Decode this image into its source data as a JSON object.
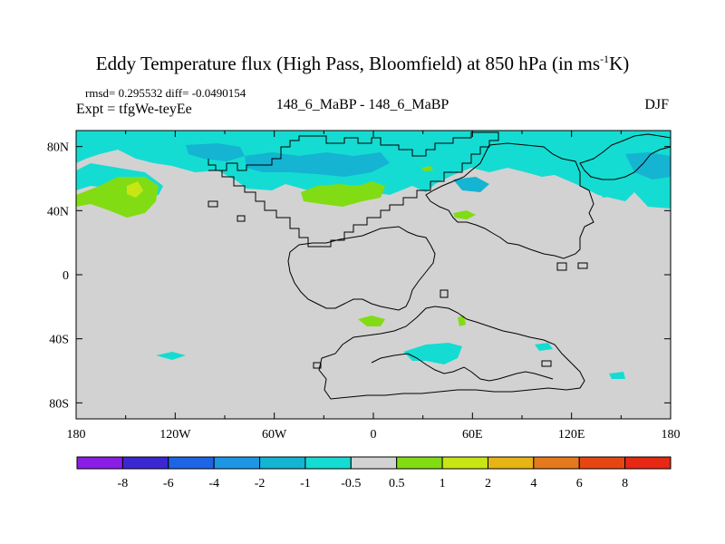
{
  "title": {
    "main": "Eddy Temperature flux (High Pass, Bloomfield) at 850 hPa (in ms",
    "sup": "-1",
    "tail": "K)"
  },
  "stats": "rmsd= 0.295532 diff= -0.0490154",
  "expt": "Expt = tfgWe-teyEe",
  "comparison": "148_6_MaBP - 148_6_MaBP",
  "season": "DJF",
  "lat_ticks": [
    "80N",
    "40N",
    "0",
    "40S",
    "80S"
  ],
  "lon_ticks": [
    "180",
    "120W",
    "60W",
    "0",
    "60E",
    "120E",
    "180"
  ],
  "colorbar": {
    "labels": [
      "-8",
      "-6",
      "-4",
      "-2",
      "-1",
      "-0.5",
      "0.5",
      "1",
      "2",
      "4",
      "6",
      "8"
    ],
    "colors": [
      "#8a1ee6",
      "#3c28d2",
      "#1e64e6",
      "#1e96e6",
      "#14b4d2",
      "#14dcd2",
      "#d2d2d2",
      "#82dc14",
      "#c8e614",
      "#e6b414",
      "#e6781e",
      "#e64614",
      "#e62814"
    ]
  },
  "chart_data": {
    "type": "heatmap",
    "projection": "cylindrical equidistant",
    "xlim": [
      -180,
      180
    ],
    "ylim": [
      -90,
      90
    ],
    "background_color": "#d2d2d2",
    "features": [
      {
        "name": "negative-flux-north-pacific",
        "level": "-1 to -0.5",
        "color": "#14dcd2",
        "lon": [
          -180,
          -40
        ],
        "lat": [
          50,
          80
        ]
      },
      {
        "name": "negative-flux-north-atlantic",
        "level": "-2 to -1",
        "color": "#14b4d2",
        "lon": [
          -60,
          0
        ],
        "lat": [
          55,
          75
        ]
      },
      {
        "name": "positive-flux-north-pacific",
        "level": "0.5 to 1",
        "color": "#82dc14",
        "lon": [
          -165,
          -130
        ],
        "lat": [
          35,
          55
        ]
      },
      {
        "name": "positive-flux-north-atlantic",
        "level": "0.5 to 1",
        "color": "#82dc14",
        "lon": [
          -40,
          10
        ],
        "lat": [
          38,
          52
        ]
      },
      {
        "name": "negative-flux-asia",
        "level": "-1 to -0.5",
        "color": "#14dcd2",
        "lon": [
          35,
          75
        ],
        "lat": [
          40,
          60
        ]
      },
      {
        "name": "negative-flux-south-indian",
        "level": "-1 to -0.5",
        "color": "#14dcd2",
        "lon": [
          25,
          85
        ],
        "lat": [
          -62,
          -45
        ]
      }
    ]
  }
}
